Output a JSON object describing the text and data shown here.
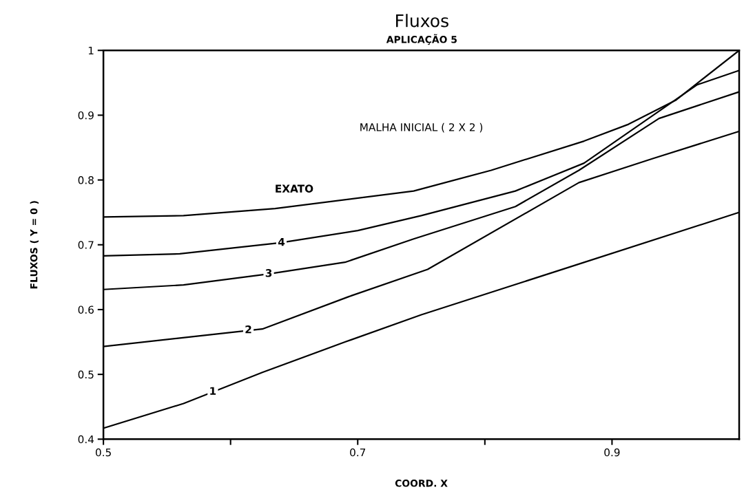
{
  "chart_data": {
    "type": "line",
    "title": "Fluxos",
    "subtitle": "APLICAÇÃO 5",
    "xlabel": "COORD. X",
    "ylabel": "FLUXOS ( Y = 0 )",
    "xlim": [
      0.5,
      1.0
    ],
    "ylim": [
      0.4,
      1
    ],
    "xticks": [
      0.5,
      {
        "value": 0.6,
        "label": null
      },
      0.7,
      {
        "value": 0.8,
        "label": null
      },
      0.9
    ],
    "yticks": [
      0.4,
      0.5,
      0.6,
      0.7,
      0.8,
      0.9,
      1
    ],
    "grid": false,
    "legend": false,
    "marker": "none",
    "line_style": "solid",
    "series": [
      {
        "color": "#000000",
        "x": [
          0.5,
          0.563,
          0.625,
          0.69,
          0.75,
          0.875,
          1.0
        ],
        "values": [
          0.417,
          0.455,
          0.503,
          0.55,
          0.592,
          0.671,
          0.75
        ]
      },
      {
        "color": "#000000",
        "x": [
          0.5,
          0.56,
          0.625,
          0.693,
          0.755,
          0.874,
          0.932,
          1.0
        ],
        "values": [
          0.543,
          0.556,
          0.57,
          0.62,
          0.662,
          0.796,
          0.833,
          0.875
        ]
      },
      {
        "color": "#000000",
        "x": [
          0.5,
          0.563,
          0.63,
          0.69,
          0.744,
          0.824,
          0.874,
          0.937,
          1.0
        ],
        "values": [
          0.631,
          0.638,
          0.655,
          0.673,
          0.709,
          0.759,
          0.815,
          0.895,
          0.936
        ]
      },
      {
        "color": "#000000",
        "x": [
          0.5,
          0.56,
          0.639,
          0.7,
          0.75,
          0.824,
          0.878,
          0.967,
          1.0
        ],
        "values": [
          0.683,
          0.686,
          0.703,
          0.722,
          0.745,
          0.783,
          0.826,
          0.947,
          0.969
        ]
      },
      {
        "name": "EXATO",
        "color": "#000000",
        "x": [
          0.5,
          0.563,
          0.635,
          0.744,
          0.805,
          0.878,
          0.913,
          0.95,
          1.0
        ],
        "values": [
          0.743,
          0.745,
          0.756,
          0.783,
          0.815,
          0.86,
          0.886,
          0.923,
          1.0
        ]
      }
    ],
    "annotations": [
      "MALHA INICIAL ( 2 X 2 )",
      {
        "text": "1",
        "x": 0.586,
        "y": 0.473
      },
      {
        "text": "2",
        "x": 0.614,
        "y": 0.568
      },
      {
        "text": "3",
        "x": 0.63,
        "y": 0.655
      },
      {
        "text": "4",
        "x": 0.64,
        "y": 0.703
      }
    ]
  }
}
